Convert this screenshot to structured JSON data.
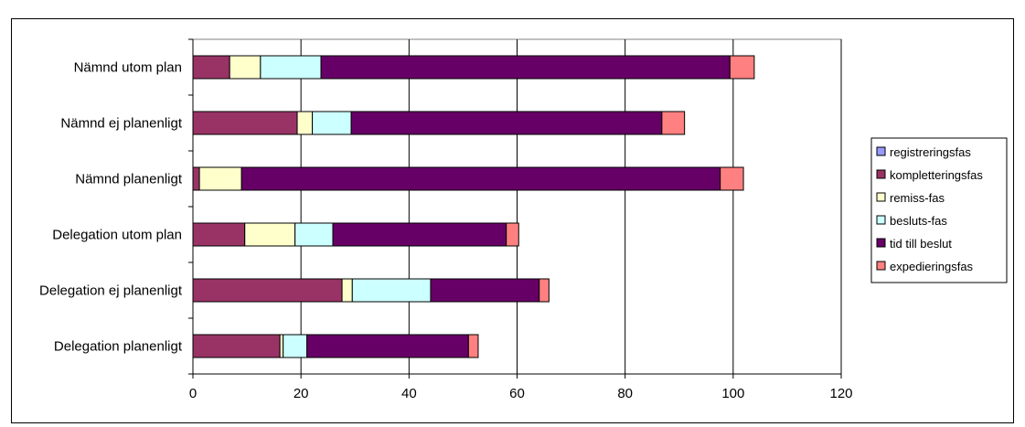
{
  "chart_data": {
    "type": "bar",
    "orientation": "horizontal",
    "stacked": true,
    "categories": [
      "Nämnd utom plan",
      "Nämnd ej planenligt",
      "Nämnd planenligt",
      "Delegation utom plan",
      "Delegation ej planenligt",
      "Delegation planenligt"
    ],
    "series": [
      {
        "name": "registreringsfas",
        "color": "#9999ff",
        "values": [
          0,
          0,
          0,
          0,
          0,
          0
        ]
      },
      {
        "name": "kompletteringsfas",
        "color": "#993366",
        "values": [
          6.8,
          19.3,
          1.2,
          9.6,
          27.6,
          16.1
        ]
      },
      {
        "name": "remiss-fas",
        "color": "#ffffcc",
        "values": [
          5.7,
          2.8,
          7.8,
          9.3,
          1.9,
          0.6
        ]
      },
      {
        "name": "besluts-fas",
        "color": "#ccffff",
        "values": [
          11.2,
          7.2,
          0,
          7.0,
          14.5,
          4.4
        ]
      },
      {
        "name": "tid till beslut",
        "color": "#660066",
        "values": [
          75.7,
          57.5,
          88.6,
          32.1,
          20.1,
          29.9
        ]
      },
      {
        "name": "expedieringsfas",
        "color": "#ff8080",
        "values": [
          4.5,
          4.2,
          4.3,
          2.3,
          1.8,
          1.8
        ]
      }
    ],
    "x_ticks": [
      "0",
      "20",
      "40",
      "60",
      "80",
      "100",
      "120"
    ],
    "xlim": [
      0,
      120
    ],
    "xlabel": "",
    "ylabel": "",
    "title": "",
    "grid": "vertical major gridlines",
    "legend_position": "right"
  }
}
